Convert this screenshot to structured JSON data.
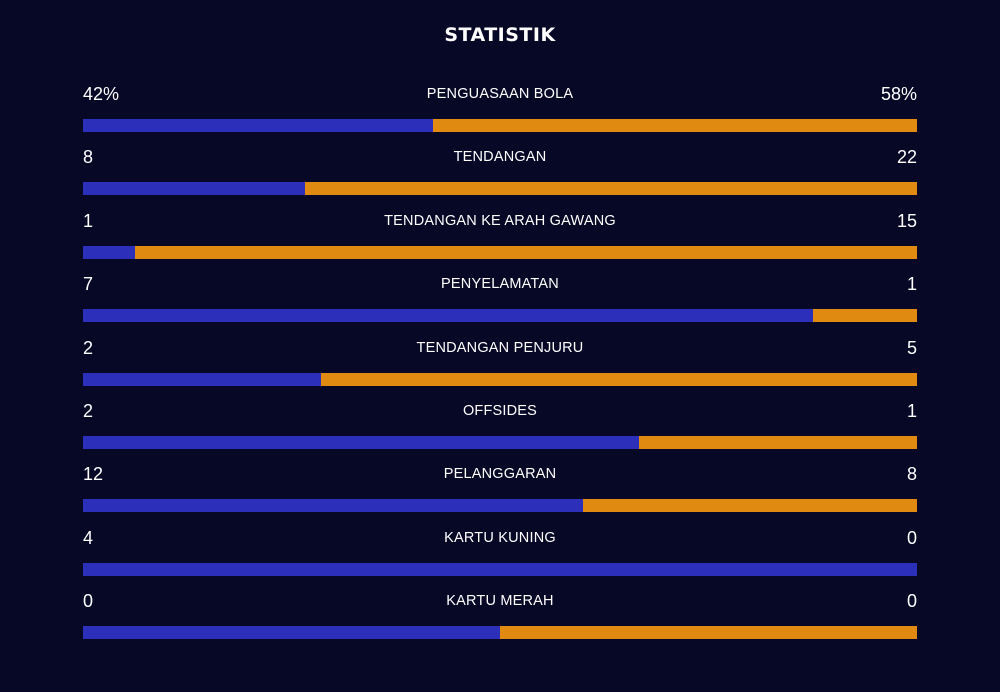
{
  "title": "STATISTIK",
  "colors": {
    "background": "#070726",
    "home_bar": "#2c2fb9",
    "away_bar": "#e08a12",
    "text": "#ffffff"
  },
  "stats": [
    {
      "label": "PENGUASAAN BOLA",
      "home": "42%",
      "away": "58%",
      "home_share": 0.42
    },
    {
      "label": "TENDANGAN",
      "home": "8",
      "away": "22",
      "home_share": 0.2667
    },
    {
      "label": "TENDANGAN KE ARAH GAWANG",
      "home": "1",
      "away": "15",
      "home_share": 0.0625
    },
    {
      "label": "PENYELAMATAN",
      "home": "7",
      "away": "1",
      "home_share": 0.875
    },
    {
      "label": "TENDANGAN PENJURU",
      "home": "2",
      "away": "5",
      "home_share": 0.2857
    },
    {
      "label": "OFFSIDES",
      "home": "2",
      "away": "1",
      "home_share": 0.6667
    },
    {
      "label": "PELANGGARAN",
      "home": "12",
      "away": "8",
      "home_share": 0.6
    },
    {
      "label": "KARTU KUNING",
      "home": "4",
      "away": "0",
      "home_share": 1.0
    },
    {
      "label": "KARTU MERAH",
      "home": "0",
      "away": "0",
      "home_share": 0.5
    }
  ]
}
